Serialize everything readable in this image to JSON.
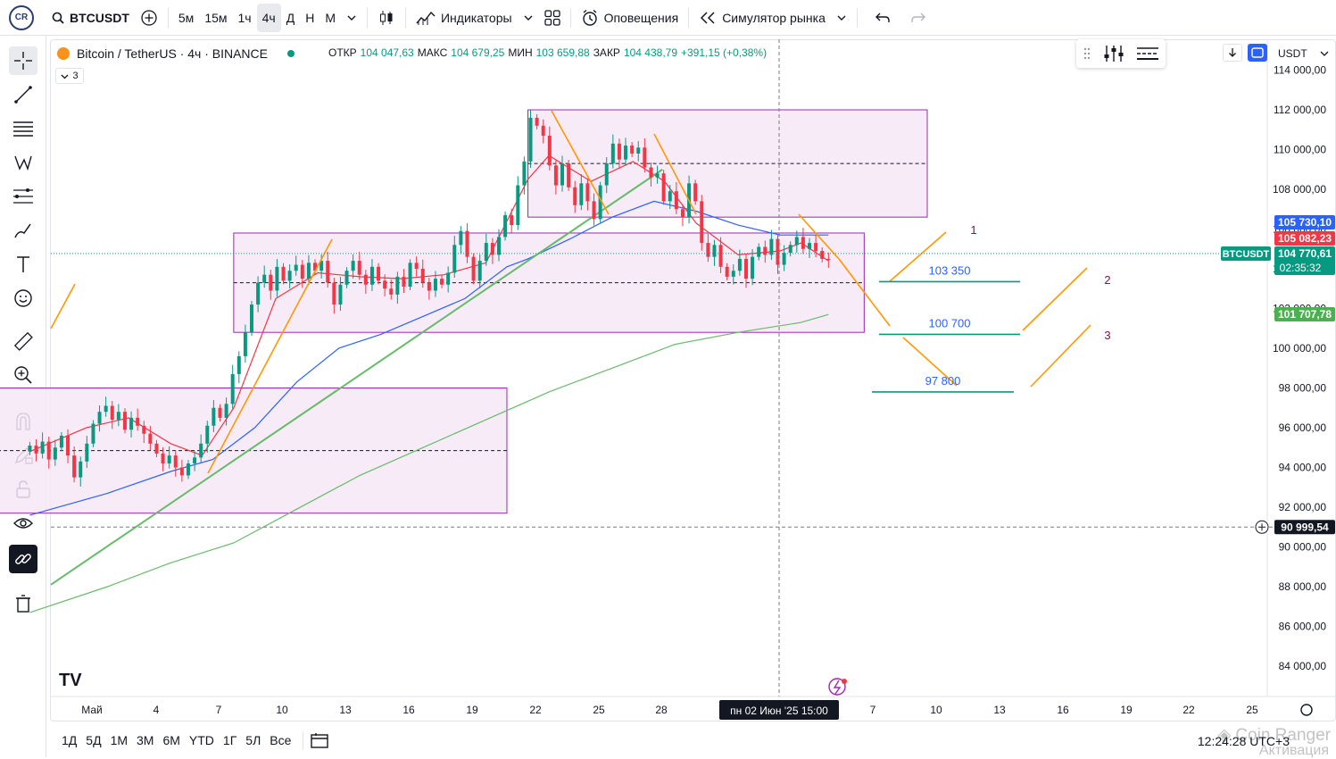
{
  "topbar": {
    "symbol": "BTCUSDT",
    "intervals": [
      "5м",
      "15м",
      "1ч",
      "4ч",
      "Д",
      "Н",
      "М"
    ],
    "active_interval": "4ч",
    "indicators_label": "Индикаторы",
    "alerts_label": "Оповещения",
    "replay_label": "Симулятор рынка"
  },
  "legend": {
    "title": "Bitcoin / TetherUS · 4ч · BINANCE",
    "open_key": "ОТКР",
    "open": "104 047,63",
    "high_key": "МАКС",
    "high": "104 679,25",
    "low_key": "МИН",
    "low": "103 659,88",
    "close_key": "ЗАКР",
    "close": "104 438,79",
    "change": "+391,15 (+0,38%)",
    "indicators_count": "3"
  },
  "currency": "USDT",
  "colors": {
    "up": "#089981",
    "down": "#f23645",
    "ma_red": "#f23645",
    "ma_blue": "#2962ff",
    "ma_green": "#66bb6a",
    "zone_fill": "#f6e8f6",
    "zone_border": "#9c27b0",
    "orange": "#ff9800",
    "target_line": "#089981"
  },
  "chart_data": {
    "type": "candlestick",
    "symbol": "BTCUSDT",
    "timeframe": "4ч",
    "ylim": [
      83000,
      115000
    ],
    "y_ticks": [
      84000,
      86000,
      88000,
      90000,
      92000,
      94000,
      96000,
      98000,
      100000,
      102000,
      104000,
      106000,
      108000,
      110000,
      112000,
      114000
    ],
    "y_tick_labels": [
      "84 000,00",
      "86 000,00",
      "88 000,00",
      "90 000,00",
      "92 000,00",
      "94 000,00",
      "96 000,00",
      "98 000,00",
      "100 000,00",
      "102 000,00",
      "104 000,00",
      "106 000,00",
      "108 000,00",
      "110 000,00",
      "112 000,00",
      "114 000,00"
    ],
    "x_ticks": [
      "Май",
      "4",
      "7",
      "10",
      "13",
      "16",
      "19",
      "22",
      "25",
      "28",
      "",
      "7",
      "10",
      "13",
      "16",
      "19",
      "22",
      "25"
    ],
    "crosshair_label": "пн 02 Июн '25   15:00",
    "price_tags": [
      {
        "label": "105 730,10",
        "value": 105730.1,
        "color": "#2962ff"
      },
      {
        "label": "105 082,23",
        "value": 105082.23,
        "color": "#f23645"
      },
      {
        "label": "104 770,61",
        "value": 104770.61,
        "color": "#089981",
        "countdown": "02:35:32",
        "symbol": "BTCUSDT"
      },
      {
        "label": "101 707,78",
        "value": 101707.78,
        "color": "#4caf50"
      },
      {
        "label": "90 999,54",
        "value": 90999.54,
        "color": "#131722"
      }
    ],
    "zones": [
      {
        "from": "2025-04-22",
        "to": "2025-05-21",
        "top": 98000,
        "bottom": 91700
      },
      {
        "from": "2025-05-08",
        "to": "2025-06-07",
        "top": 105800,
        "bottom": 100800
      },
      {
        "from": "2025-05-22",
        "to": "2025-06-10",
        "top": 112000,
        "bottom": 106600
      }
    ],
    "targets": [
      {
        "label": "103 350",
        "value": 103350
      },
      {
        "label": "100 700",
        "value": 100700
      },
      {
        "label": "97 800",
        "value": 97800
      }
    ],
    "scenario_labels": [
      "1",
      "2",
      "3"
    ],
    "candles_close": [
      95100,
      94700,
      95300,
      94400,
      95000,
      95600,
      94600,
      93500,
      94300,
      95200,
      96200,
      96800,
      97100,
      96400,
      96800,
      95900,
      96500,
      96100,
      95700,
      95200,
      94700,
      94200,
      94600,
      94000,
      93600,
      94200,
      94500,
      95200,
      96100,
      97000,
      96500,
      97200,
      98700,
      99600,
      100800,
      102200,
      103300,
      103700,
      102900,
      104100,
      103400,
      103900,
      104200,
      103500,
      104300,
      103900,
      104400,
      103300,
      102200,
      103200,
      103900,
      104400,
      103700,
      103200,
      104100,
      103400,
      103000,
      102700,
      103600,
      103100,
      104300,
      104000,
      103300,
      102900,
      103500,
      103200,
      103800,
      105200,
      105900,
      104600,
      103400,
      104400,
      105300,
      104700,
      105600,
      106700,
      106200,
      108200,
      109400,
      111600,
      111200,
      110700,
      109200,
      108200,
      109300,
      108100,
      107200,
      108300,
      107400,
      106500,
      108200,
      109300,
      110300,
      109500,
      110200,
      109800,
      110100,
      109100,
      108600,
      108800,
      107400,
      107900,
      107000,
      106600,
      108300,
      107400,
      105300,
      104600,
      105200,
      104100,
      103600,
      103900,
      104500,
      103500,
      104600,
      105100,
      104700,
      105500,
      104200,
      104800,
      105200,
      105600,
      105000,
      105300,
      104900,
      104500,
      104438.79
    ]
  }
}
